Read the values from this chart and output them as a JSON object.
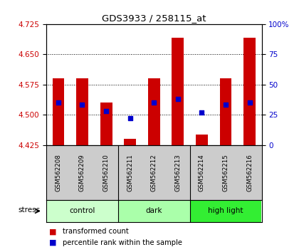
{
  "title": "GDS3933 / 258115_at",
  "samples": [
    "GSM562208",
    "GSM562209",
    "GSM562210",
    "GSM562211",
    "GSM562212",
    "GSM562213",
    "GSM562214",
    "GSM562215",
    "GSM562216"
  ],
  "transformed_counts": [
    4.59,
    4.59,
    4.53,
    4.44,
    4.59,
    4.69,
    4.45,
    4.59,
    4.69
  ],
  "percentile_ranks": [
    35,
    33,
    28,
    22,
    35,
    38,
    27,
    33,
    35
  ],
  "groups": [
    {
      "label": "control",
      "start": 0,
      "end": 2,
      "color": "#ccffcc"
    },
    {
      "label": "dark",
      "start": 3,
      "end": 5,
      "color": "#aaffaa"
    },
    {
      "label": "high light",
      "start": 6,
      "end": 8,
      "color": "#33ee33"
    }
  ],
  "ylim_left": [
    4.425,
    4.725
  ],
  "ylim_right": [
    0,
    100
  ],
  "yticks_left": [
    4.425,
    4.5,
    4.575,
    4.65,
    4.725
  ],
  "yticks_right": [
    0,
    25,
    50,
    75,
    100
  ],
  "bar_color": "#cc0000",
  "dot_color": "#0000cc",
  "bar_bottom": 4.425,
  "background_color": "#ffffff",
  "grid_color": "#000000",
  "legend_items": [
    {
      "color": "#cc0000",
      "label": "transformed count"
    },
    {
      "color": "#0000cc",
      "label": "percentile rank within the sample"
    }
  ],
  "stress_label": "stress",
  "left_axis_color": "#cc0000",
  "right_axis_color": "#0000cc",
  "label_row_color": "#cccccc",
  "bar_width": 0.5
}
